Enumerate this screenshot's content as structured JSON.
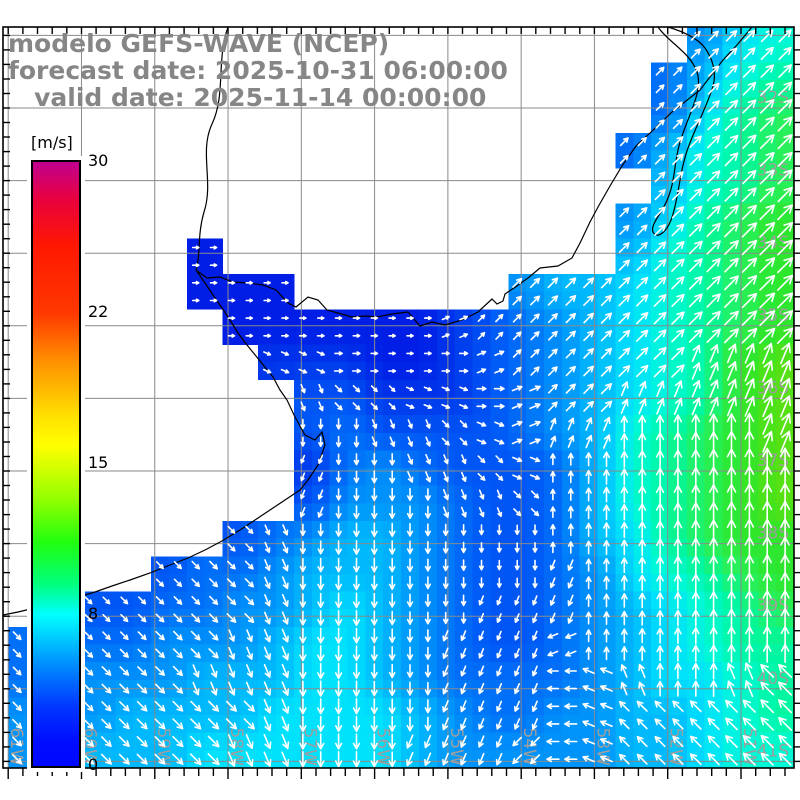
{
  "title": {
    "line1": "modelo GEFS-WAVE (NCEP)",
    "line2": "forecast date: 2025-10-31 06:00:00",
    "line3": "   valid date: 2025-11-14 00:00:00"
  },
  "colorbar": {
    "unit": "[m/s]",
    "min": 0,
    "max": 30,
    "tick_labels": [
      "30",
      "22",
      "15",
      "8",
      "0"
    ],
    "gradient_top_to_bottom": [
      "#c00090",
      "#ff1800",
      "#ff9000",
      "#ffff00",
      "#20ff10",
      "#00ffff",
      "#0038ff",
      "#0008ff"
    ]
  },
  "axes": {
    "lon_labels": [
      "61W",
      "60W",
      "59W",
      "58W",
      "57W",
      "56W",
      "55W",
      "54W",
      "53W",
      "52W",
      "51W"
    ],
    "lat_labels": [
      "32S",
      "33S",
      "34S",
      "35S",
      "36S",
      "37S",
      "38S",
      "39S",
      "40S",
      "41S"
    ]
  },
  "colors": {
    "land": "#ffffff",
    "coastline": "#000000",
    "gridline": "#8a8a8a",
    "axis_label_gray": "#9e9e9e",
    "title_gray": "#868686",
    "frame": "#000000",
    "arrow": "#ffffff",
    "cell_colormap_stops": [
      [
        0,
        "#0000fa"
      ],
      [
        2,
        "#001ee6"
      ],
      [
        3,
        "#0037eb"
      ],
      [
        4,
        "#0055f5"
      ],
      [
        5,
        "#0070f8"
      ],
      [
        6,
        "#0094fa"
      ],
      [
        7,
        "#00b9fc"
      ],
      [
        8,
        "#00e1fc"
      ],
      [
        9,
        "#00f8d7"
      ],
      [
        10,
        "#00f6a0"
      ],
      [
        11,
        "#28f05a"
      ],
      [
        12,
        "#2de62d"
      ],
      [
        13,
        "#55e114"
      ],
      [
        15,
        "#96d700"
      ]
    ]
  },
  "chart_data": {
    "type": "heatmap",
    "description": "Wave-model intensity field [m/s] with direction arrows over the Rio de la Plata / SW Atlantic region",
    "unit": "m/s",
    "lon_gridlines": [
      "61W",
      "60W",
      "59W",
      "58W",
      "57W",
      "56W",
      "55W",
      "54W",
      "53W",
      "52W",
      "51W"
    ],
    "lat_gridlines": [
      "32S",
      "33S",
      "34S",
      "35S",
      "36S",
      "37S",
      "38S",
      "39S",
      "40S",
      "41S"
    ],
    "grid_note": "21 rows x 22 cols, row 0 = north, col 0 = west; '.'=land, hex digit = speed m/s",
    "direction_encoding": "hex 0-15: 0=N then clockwise in 22.5 deg steps (2=NE,4=E,6=SE,8=S,a=SW,c=W,e=NW); '.'=land",
    "speed_grid": [
      "...................689",
      "..................579a",
      "..................58ab",
      ".................579ab",
      "..................79ab",
      ".................68abc",
      ".....2...........79abc",
      ".....222......67789abc",
      "......2222223456789abc",
      ".......333223456789acd",
      "........44333456789acd",
      "........4544445679abcd",
      "........3565444579abcd",
      "........4666544579abcd",
      "......456776544578abcc",
      "....455677765445689abc",
      ".4445566787654456789ab",
      "55556667887654456789aa",
      "566667778876555567889a",
      "666777788887655667789a",
      "6777788888876666677899"
    ],
    "direction_grid": [
      "...................222",
      "..................2222",
      "..................2222",
      ".................22222",
      "..................2222",
      ".................22222",
      ".....4...........22222",
      ".....444......22222222",
      "......4444443222222222",
      ".......554444322222111",
      "........76655432211111",
      "........88776531100001",
      "........98877650000000",
      "........98887760000000",
      "......6788888880000000",
      "....666788888889000000",
      ".666666788888999000000",
      "666666778888999b000000",
      "666667778888999cdf00fe",
      "666666678888999cdeeeee",
      "66666677888999acdeeeee"
    ]
  }
}
